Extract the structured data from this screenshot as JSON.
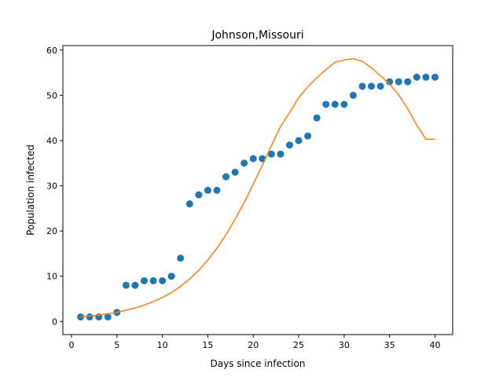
{
  "chart_data": {
    "type": "scatter",
    "title": "Johnson,Missouri",
    "xlabel": "Days since infection",
    "ylabel": "Population infected",
    "xlim": [
      -0.95,
      41.95
    ],
    "ylim": [
      -2.9,
      61.0
    ],
    "xticks": [
      0,
      5,
      10,
      15,
      20,
      25,
      30,
      35,
      40
    ],
    "yticks": [
      0,
      10,
      20,
      30,
      40,
      50,
      60
    ],
    "grid": false,
    "legend": "none",
    "series": [
      {
        "kind": "scatter",
        "color": "#1f77b4",
        "x": [
          1,
          2,
          3,
          4,
          5,
          6,
          7,
          8,
          9,
          10,
          11,
          12,
          13,
          14,
          15,
          16,
          17,
          18,
          19,
          20,
          21,
          22,
          23,
          24,
          25,
          26,
          27,
          28,
          29,
          30,
          31,
          32,
          33,
          34,
          35,
          36,
          37,
          38,
          39,
          40
        ],
        "y": [
          1,
          1,
          1,
          1,
          2,
          8,
          8,
          9,
          9,
          9,
          10,
          14,
          26,
          28,
          29,
          29,
          32,
          33,
          35,
          36,
          36,
          37,
          37,
          39,
          40,
          41,
          45,
          48,
          48,
          48,
          50,
          52,
          52,
          52,
          53,
          53,
          53,
          54,
          54,
          54
        ]
      },
      {
        "kind": "line",
        "color": "#ff7f0e",
        "x": [
          1,
          2,
          3,
          4,
          5,
          6,
          7,
          8,
          9,
          10,
          11,
          12,
          13,
          14,
          15,
          16,
          17,
          18,
          19,
          20,
          21,
          22,
          23,
          24,
          25,
          26,
          27,
          28,
          29,
          30,
          31,
          32,
          33,
          34,
          35,
          36,
          37,
          38,
          39,
          40
        ],
        "y": [
          1.0,
          1.2,
          1.4,
          1.7,
          2.0,
          2.5,
          3.0,
          3.6,
          4.4,
          5.3,
          6.4,
          7.8,
          9.4,
          11.3,
          13.6,
          16.2,
          19.2,
          22.6,
          26.3,
          30.4,
          34.5,
          38.9,
          43.1,
          46.2,
          49.5,
          51.9,
          53.9,
          55.7,
          57.3,
          57.8,
          58.1,
          57.5,
          56.1,
          54.3,
          52.5,
          50.1,
          47.0,
          43.4,
          40.3,
          40.3
        ]
      }
    ]
  }
}
